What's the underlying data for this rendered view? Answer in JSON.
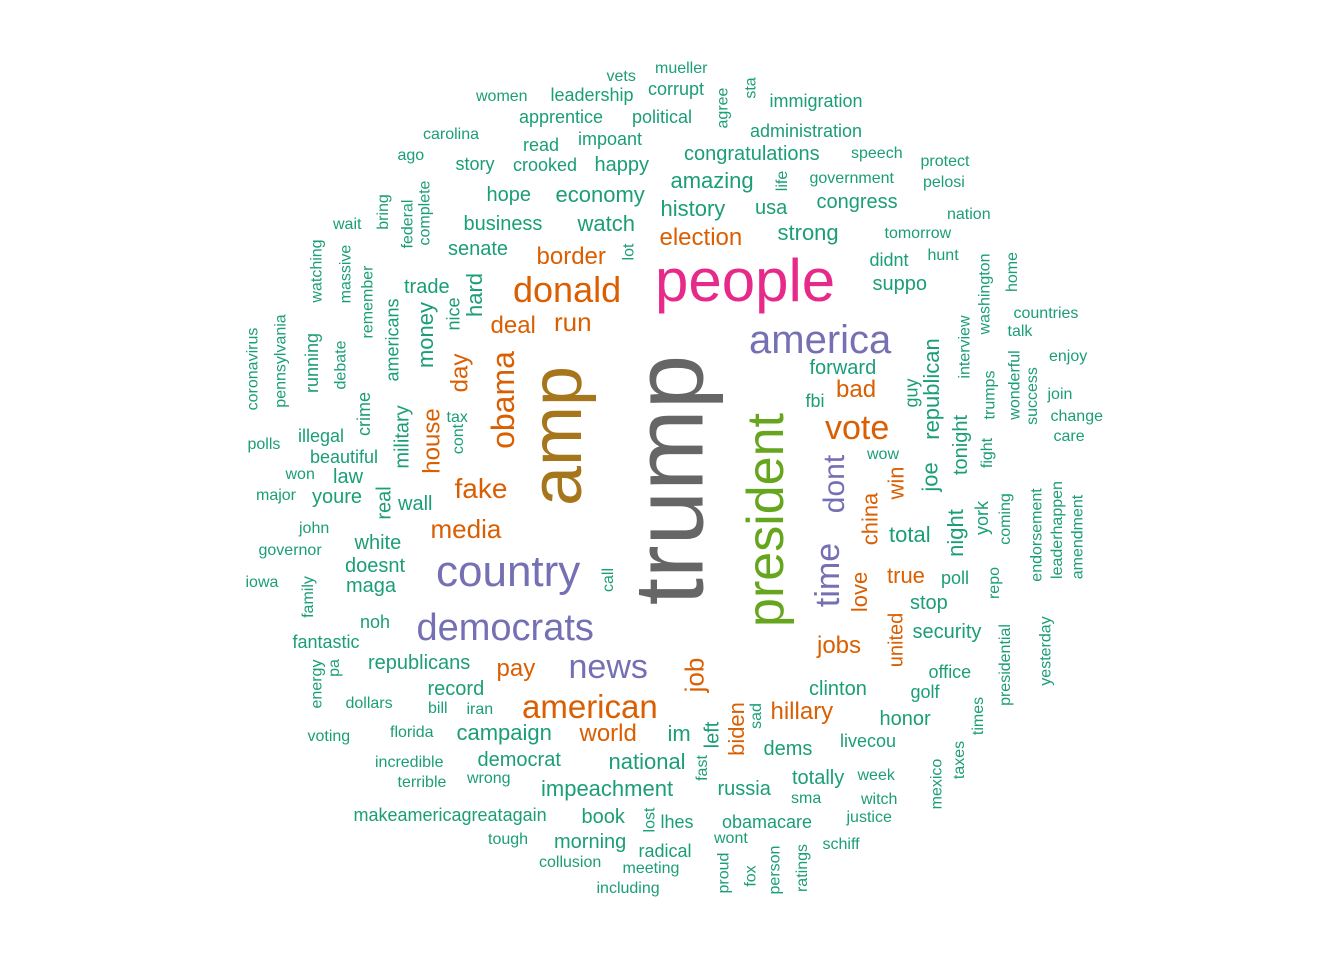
{
  "palette": {
    "teal": "#1b9e77",
    "orange": "#d95f02",
    "purple": "#7570b3",
    "magenta": "#e7298a",
    "green": "#66a61e",
    "mustard": "#a6761d",
    "gray": "#666666"
  },
  "words": [
    {
      "text": "trump",
      "freq": 100,
      "color": "gray"
    },
    {
      "text": "amp",
      "freq": 64,
      "color": "mustard"
    },
    {
      "text": "president",
      "freq": 50,
      "color": "green"
    },
    {
      "text": "people",
      "freq": 46,
      "color": "magenta"
    },
    {
      "text": "america",
      "freq": 30,
      "color": "purple"
    },
    {
      "text": "country",
      "freq": 32,
      "color": "purple"
    },
    {
      "text": "democrats",
      "freq": 31,
      "color": "purple"
    },
    {
      "text": "news",
      "freq": 26,
      "color": "purple"
    },
    {
      "text": "time",
      "freq": 25,
      "color": "purple"
    },
    {
      "text": "dont",
      "freq": 24,
      "color": "purple"
    },
    {
      "text": "donald",
      "freq": 26,
      "color": "orange"
    },
    {
      "text": "obama",
      "freq": 23,
      "color": "orange"
    },
    {
      "text": "american",
      "freq": 24,
      "color": "orange"
    },
    {
      "text": "vote",
      "freq": 24,
      "color": "orange"
    },
    {
      "text": "fake",
      "freq": 20,
      "color": "orange"
    },
    {
      "text": "media",
      "freq": 19,
      "color": "orange"
    },
    {
      "text": "job",
      "freq": 19,
      "color": "orange"
    },
    {
      "text": "world",
      "freq": 18,
      "color": "orange"
    },
    {
      "text": "house",
      "freq": 18,
      "color": "orange"
    },
    {
      "text": "biden",
      "freq": 17,
      "color": "orange"
    },
    {
      "text": "china",
      "freq": 17,
      "color": "orange"
    },
    {
      "text": "love",
      "freq": 17,
      "color": "orange"
    },
    {
      "text": "win",
      "freq": 17,
      "color": "orange"
    },
    {
      "text": "run",
      "freq": 18,
      "color": "orange"
    },
    {
      "text": "deal",
      "freq": 17,
      "color": "orange"
    },
    {
      "text": "day",
      "freq": 17,
      "color": "orange"
    },
    {
      "text": "border",
      "freq": 17,
      "color": "orange"
    },
    {
      "text": "election",
      "freq": 17,
      "color": "orange"
    },
    {
      "text": "bad",
      "freq": 17,
      "color": "orange"
    },
    {
      "text": "jobs",
      "freq": 17,
      "color": "orange"
    },
    {
      "text": "pay",
      "freq": 17,
      "color": "orange"
    },
    {
      "text": "hillary",
      "freq": 17,
      "color": "orange"
    },
    {
      "text": "true",
      "freq": 16,
      "color": "orange"
    },
    {
      "text": "united",
      "freq": 16,
      "color": "orange"
    },
    {
      "text": "hard",
      "freq": 15,
      "color": "teal"
    },
    {
      "text": "money",
      "freq": 15,
      "color": "teal"
    },
    {
      "text": "total",
      "freq": 15,
      "color": "teal"
    },
    {
      "text": "national",
      "freq": 15,
      "color": "teal"
    },
    {
      "text": "impeachment",
      "freq": 15,
      "color": "teal"
    },
    {
      "text": "im",
      "freq": 15,
      "color": "teal"
    },
    {
      "text": "republican",
      "freq": 14,
      "color": "teal"
    },
    {
      "text": "night",
      "freq": 14,
      "color": "teal"
    },
    {
      "text": "joe",
      "freq": 14,
      "color": "teal"
    },
    {
      "text": "watch",
      "freq": 14,
      "color": "teal"
    },
    {
      "text": "strong",
      "freq": 14,
      "color": "teal"
    },
    {
      "text": "history",
      "freq": 14,
      "color": "teal"
    },
    {
      "text": "economy",
      "freq": 14,
      "color": "teal"
    },
    {
      "text": "amazing",
      "freq": 14,
      "color": "teal"
    },
    {
      "text": "congratulations",
      "freq": 14,
      "color": "teal"
    },
    {
      "text": "business",
      "freq": 14,
      "color": "teal"
    },
    {
      "text": "senate",
      "freq": 13,
      "color": "teal"
    },
    {
      "text": "trade",
      "freq": 13,
      "color": "teal"
    },
    {
      "text": "campaign",
      "freq": 14,
      "color": "teal"
    },
    {
      "text": "republicans",
      "freq": 14,
      "color": "teal"
    },
    {
      "text": "record",
      "freq": 14,
      "color": "teal"
    },
    {
      "text": "forward",
      "freq": 13,
      "color": "teal"
    },
    {
      "text": "suppo",
      "freq": 14,
      "color": "teal"
    },
    {
      "text": "clinton",
      "freq": 13,
      "color": "teal"
    },
    {
      "text": "dems",
      "freq": 13,
      "color": "teal"
    },
    {
      "text": "security",
      "freq": 13,
      "color": "teal"
    },
    {
      "text": "stop",
      "freq": 13,
      "color": "teal"
    },
    {
      "text": "tonight",
      "freq": 13,
      "color": "teal"
    },
    {
      "text": "white",
      "freq": 13,
      "color": "teal"
    },
    {
      "text": "doesnt",
      "freq": 13,
      "color": "teal"
    },
    {
      "text": "maga",
      "freq": 13,
      "color": "teal"
    },
    {
      "text": "wall",
      "freq": 13,
      "color": "teal"
    },
    {
      "text": "real",
      "freq": 13,
      "color": "teal"
    },
    {
      "text": "military",
      "freq": 13,
      "color": "teal"
    },
    {
      "text": "honor",
      "freq": 13,
      "color": "teal"
    },
    {
      "text": "happy",
      "freq": 13,
      "color": "teal"
    },
    {
      "text": "hope",
      "freq": 13,
      "color": "teal"
    },
    {
      "text": "usa",
      "freq": 13,
      "color": "teal"
    },
    {
      "text": "congress",
      "freq": 13,
      "color": "teal"
    },
    {
      "text": "democrat",
      "freq": 13,
      "color": "teal"
    },
    {
      "text": "russia",
      "freq": 13,
      "color": "teal"
    },
    {
      "text": "left",
      "freq": 13,
      "color": "teal"
    },
    {
      "text": "obamacare",
      "freq": 12,
      "color": "teal"
    },
    {
      "text": "totally",
      "freq": 12,
      "color": "teal"
    },
    {
      "text": "livecou",
      "freq": 12,
      "color": "teal"
    },
    {
      "text": "york",
      "freq": 12,
      "color": "teal"
    },
    {
      "text": "guy",
      "freq": 12,
      "color": "teal"
    },
    {
      "text": "poll",
      "freq": 12,
      "color": "teal"
    },
    {
      "text": "youre",
      "freq": 12,
      "color": "teal"
    },
    {
      "text": "law",
      "freq": 12,
      "color": "teal"
    },
    {
      "text": "americans",
      "freq": 12,
      "color": "teal"
    },
    {
      "text": "nice",
      "freq": 12,
      "color": "teal"
    },
    {
      "text": "fbi",
      "freq": 12,
      "color": "teal"
    },
    {
      "text": "book",
      "freq": 12,
      "color": "teal"
    },
    {
      "text": "morning",
      "freq": 12,
      "color": "teal"
    },
    {
      "text": "radical",
      "freq": 12,
      "color": "teal"
    },
    {
      "text": "lhes",
      "freq": 12,
      "color": "teal"
    },
    {
      "text": "read",
      "freq": 12,
      "color": "teal"
    },
    {
      "text": "story",
      "freq": 12,
      "color": "teal"
    },
    {
      "text": "crooked",
      "freq": 12,
      "color": "teal"
    },
    {
      "text": "didnt",
      "freq": 12,
      "color": "teal"
    },
    {
      "text": "golf",
      "freq": 12,
      "color": "teal"
    },
    {
      "text": "office",
      "freq": 12,
      "color": "teal"
    },
    {
      "text": "fantastic",
      "freq": 12,
      "color": "teal"
    },
    {
      "text": "noh",
      "freq": 12,
      "color": "teal"
    },
    {
      "text": "beautiful",
      "freq": 11,
      "color": "teal"
    },
    {
      "text": "illegal",
      "freq": 11,
      "color": "teal"
    },
    {
      "text": "crime",
      "freq": 11,
      "color": "teal"
    },
    {
      "text": "debate",
      "freq": 11,
      "color": "teal"
    },
    {
      "text": "running",
      "freq": 11,
      "color": "teal"
    },
    {
      "text": "remember",
      "freq": 11,
      "color": "teal"
    },
    {
      "text": "massive",
      "freq": 11,
      "color": "teal"
    },
    {
      "text": "watching",
      "freq": 11,
      "color": "teal"
    },
    {
      "text": "bring",
      "freq": 11,
      "color": "teal"
    },
    {
      "text": "wait",
      "freq": 11,
      "color": "teal"
    },
    {
      "text": "federal",
      "freq": 11,
      "color": "teal"
    },
    {
      "text": "complete",
      "freq": 11,
      "color": "teal"
    },
    {
      "text": "ago",
      "freq": 11,
      "color": "teal"
    },
    {
      "text": "carolina",
      "freq": 11,
      "color": "teal"
    },
    {
      "text": "women",
      "freq": 11,
      "color": "teal"
    },
    {
      "text": "leadership",
      "freq": 11,
      "color": "teal"
    },
    {
      "text": "vets",
      "freq": 11,
      "color": "teal"
    },
    {
      "text": "mueller",
      "freq": 11,
      "color": "teal"
    },
    {
      "text": "corrupt",
      "freq": 11,
      "color": "teal"
    },
    {
      "text": "apprentice",
      "freq": 11,
      "color": "teal"
    },
    {
      "text": "political",
      "freq": 11,
      "color": "teal"
    },
    {
      "text": "impoant",
      "freq": 11,
      "color": "teal"
    },
    {
      "text": "agree",
      "freq": 11,
      "color": "teal"
    },
    {
      "text": "sta",
      "freq": 11,
      "color": "teal"
    },
    {
      "text": "immigration",
      "freq": 11,
      "color": "teal"
    },
    {
      "text": "administration",
      "freq": 11,
      "color": "teal"
    },
    {
      "text": "speech",
      "freq": 11,
      "color": "teal"
    },
    {
      "text": "government",
      "freq": 11,
      "color": "teal"
    },
    {
      "text": "life",
      "freq": 11,
      "color": "teal"
    },
    {
      "text": "protect",
      "freq": 11,
      "color": "teal"
    },
    {
      "text": "pelosi",
      "freq": 11,
      "color": "teal"
    },
    {
      "text": "nation",
      "freq": 11,
      "color": "teal"
    },
    {
      "text": "tomorrow",
      "freq": 11,
      "color": "teal"
    },
    {
      "text": "hunt",
      "freq": 11,
      "color": "teal"
    },
    {
      "text": "washington",
      "freq": 11,
      "color": "teal"
    },
    {
      "text": "home",
      "freq": 11,
      "color": "teal"
    },
    {
      "text": "countries",
      "freq": 11,
      "color": "teal"
    },
    {
      "text": "talk",
      "freq": 11,
      "color": "teal"
    },
    {
      "text": "interview",
      "freq": 11,
      "color": "teal"
    },
    {
      "text": "enjoy",
      "freq": 11,
      "color": "teal"
    },
    {
      "text": "wonderful",
      "freq": 11,
      "color": "teal"
    },
    {
      "text": "trumps",
      "freq": 11,
      "color": "teal"
    },
    {
      "text": "fight",
      "freq": 11,
      "color": "teal"
    },
    {
      "text": "success",
      "freq": 11,
      "color": "teal"
    },
    {
      "text": "join",
      "freq": 11,
      "color": "teal"
    },
    {
      "text": "change",
      "freq": 11,
      "color": "teal"
    },
    {
      "text": "care",
      "freq": 11,
      "color": "teal"
    },
    {
      "text": "wow",
      "freq": 11,
      "color": "teal"
    },
    {
      "text": "endorsement",
      "freq": 11,
      "color": "teal"
    },
    {
      "text": "leaderhappen",
      "freq": 11,
      "color": "teal"
    },
    {
      "text": "amendment",
      "freq": 11,
      "color": "teal"
    },
    {
      "text": "coming",
      "freq": 11,
      "color": "teal"
    },
    {
      "text": "repo",
      "freq": 11,
      "color": "teal"
    },
    {
      "text": "yesterday",
      "freq": 11,
      "color": "teal"
    },
    {
      "text": "presidential",
      "freq": 11,
      "color": "teal"
    },
    {
      "text": "times",
      "freq": 11,
      "color": "teal"
    },
    {
      "text": "taxes",
      "freq": 11,
      "color": "teal"
    },
    {
      "text": "mexico",
      "freq": 11,
      "color": "teal"
    },
    {
      "text": "week",
      "freq": 11,
      "color": "teal"
    },
    {
      "text": "witch",
      "freq": 11,
      "color": "teal"
    },
    {
      "text": "justice",
      "freq": 11,
      "color": "teal"
    },
    {
      "text": "schiff",
      "freq": 11,
      "color": "teal"
    },
    {
      "text": "sma",
      "freq": 11,
      "color": "teal"
    },
    {
      "text": "ratings",
      "freq": 11,
      "color": "teal"
    },
    {
      "text": "person",
      "freq": 11,
      "color": "teal"
    },
    {
      "text": "wont",
      "freq": 11,
      "color": "teal"
    },
    {
      "text": "proud",
      "freq": 11,
      "color": "teal"
    },
    {
      "text": "fox",
      "freq": 11,
      "color": "teal"
    },
    {
      "text": "fast",
      "freq": 11,
      "color": "teal"
    },
    {
      "text": "sad",
      "freq": 11,
      "color": "teal"
    },
    {
      "text": "lost",
      "freq": 11,
      "color": "teal"
    },
    {
      "text": "including",
      "freq": 11,
      "color": "teal"
    },
    {
      "text": "meeting",
      "freq": 11,
      "color": "teal"
    },
    {
      "text": "collusion",
      "freq": 11,
      "color": "teal"
    },
    {
      "text": "tough",
      "freq": 11,
      "color": "teal"
    },
    {
      "text": "makeamericagreatagain",
      "freq": 11,
      "color": "teal"
    },
    {
      "text": "terrible",
      "freq": 11,
      "color": "teal"
    },
    {
      "text": "wrong",
      "freq": 11,
      "color": "teal"
    },
    {
      "text": "incredible",
      "freq": 11,
      "color": "teal"
    },
    {
      "text": "florida",
      "freq": 11,
      "color": "teal"
    },
    {
      "text": "bill",
      "freq": 11,
      "color": "teal"
    },
    {
      "text": "iran",
      "freq": 11,
      "color": "teal"
    },
    {
      "text": "voting",
      "freq": 11,
      "color": "teal"
    },
    {
      "text": "dollars",
      "freq": 11,
      "color": "teal"
    },
    {
      "text": "energy",
      "freq": 11,
      "color": "teal"
    },
    {
      "text": "pa",
      "freq": 11,
      "color": "teal"
    },
    {
      "text": "family",
      "freq": 11,
      "color": "teal"
    },
    {
      "text": "iowa",
      "freq": 11,
      "color": "teal"
    },
    {
      "text": "governor",
      "freq": 11,
      "color": "teal"
    },
    {
      "text": "john",
      "freq": 11,
      "color": "teal"
    },
    {
      "text": "major",
      "freq": 11,
      "color": "teal"
    },
    {
      "text": "won",
      "freq": 11,
      "color": "teal"
    },
    {
      "text": "polls",
      "freq": 11,
      "color": "teal"
    },
    {
      "text": "coronavirus",
      "freq": 11,
      "color": "teal"
    },
    {
      "text": "pennsylvania",
      "freq": 11,
      "color": "teal"
    },
    {
      "text": "call",
      "freq": 11,
      "color": "teal"
    },
    {
      "text": "lot",
      "freq": 11,
      "color": "teal"
    },
    {
      "text": "tax",
      "freq": 11,
      "color": "teal"
    },
    {
      "text": "cont",
      "freq": 11,
      "color": "teal"
    }
  ]
}
